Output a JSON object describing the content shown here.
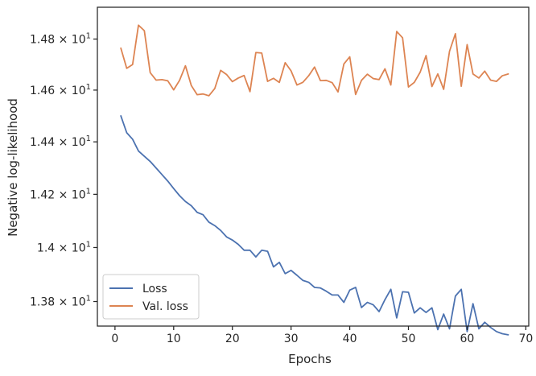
{
  "chart_data": {
    "type": "line",
    "title": "",
    "xlabel": "Epochs",
    "ylabel": "Negative log-likelihood",
    "xlim": [
      -3,
      70.5
    ],
    "ylim": [
      13.71,
      14.926
    ],
    "yscale": "log",
    "grid": false,
    "legend_position": "lower-left",
    "xticks": [
      0,
      10,
      20,
      30,
      40,
      50,
      60,
      70
    ],
    "xtick_labels": [
      "0",
      "10",
      "20",
      "30",
      "40",
      "50",
      "60",
      "70"
    ],
    "yticks": [
      13.8,
      14.0,
      14.2,
      14.4,
      14.6,
      14.8
    ],
    "ytick_labels": [
      {
        "base": "1.38 × 10",
        "exp": "1"
      },
      {
        "base": "1.4 × 10",
        "exp": "1"
      },
      {
        "base": "1.42 × 10",
        "exp": "1"
      },
      {
        "base": "1.44 × 10",
        "exp": "1"
      },
      {
        "base": "1.46 × 10",
        "exp": "1"
      },
      {
        "base": "1.48 × 10",
        "exp": "1"
      }
    ],
    "x": [
      1,
      2,
      3,
      4,
      5,
      6,
      7,
      8,
      9,
      10,
      11,
      12,
      13,
      14,
      15,
      16,
      17,
      18,
      19,
      20,
      21,
      22,
      23,
      24,
      25,
      26,
      27,
      28,
      29,
      30,
      31,
      32,
      33,
      34,
      35,
      36,
      37,
      38,
      39,
      40,
      41,
      42,
      43,
      44,
      45,
      46,
      47,
      48,
      49,
      50,
      51,
      52,
      53,
      54,
      55,
      56,
      57,
      58,
      59,
      60,
      61,
      62,
      63,
      64,
      65,
      66,
      67
    ],
    "series": [
      {
        "name": "Loss",
        "color": "#4c72b0",
        "values": [
          14.5,
          14.435,
          14.41,
          14.365,
          14.345,
          14.325,
          14.3,
          14.275,
          14.25,
          14.222,
          14.195,
          14.173,
          14.157,
          14.132,
          14.123,
          14.095,
          14.082,
          14.064,
          14.04,
          14.028,
          14.012,
          13.99,
          13.99,
          13.965,
          13.99,
          13.986,
          13.928,
          13.945,
          13.903,
          13.915,
          13.897,
          13.878,
          13.871,
          13.852,
          13.85,
          13.838,
          13.824,
          13.824,
          13.797,
          13.842,
          13.852,
          13.778,
          13.797,
          13.788,
          13.763,
          13.807,
          13.845,
          13.74,
          13.836,
          13.834,
          13.758,
          13.777,
          13.76,
          13.777,
          13.697,
          13.754,
          13.7,
          13.82,
          13.845,
          13.69,
          13.792,
          13.7,
          13.724,
          13.705,
          13.69,
          13.682,
          13.678
        ]
      },
      {
        "name": "Val. loss",
        "color": "#dd8452",
        "values": [
          14.764,
          14.685,
          14.7,
          14.855,
          14.833,
          14.668,
          14.639,
          14.641,
          14.636,
          14.601,
          14.638,
          14.695,
          14.618,
          14.582,
          14.585,
          14.578,
          14.606,
          14.677,
          14.661,
          14.633,
          14.647,
          14.657,
          14.594,
          14.747,
          14.745,
          14.634,
          14.646,
          14.63,
          14.707,
          14.675,
          14.62,
          14.63,
          14.656,
          14.69,
          14.637,
          14.638,
          14.629,
          14.593,
          14.702,
          14.73,
          14.583,
          14.638,
          14.662,
          14.645,
          14.641,
          14.683,
          14.62,
          14.83,
          14.805,
          14.612,
          14.63,
          14.67,
          14.735,
          14.614,
          14.663,
          14.603,
          14.752,
          14.821,
          14.615,
          14.778,
          14.663,
          14.647,
          14.674,
          14.639,
          14.634,
          14.656,
          14.663
        ]
      }
    ]
  }
}
